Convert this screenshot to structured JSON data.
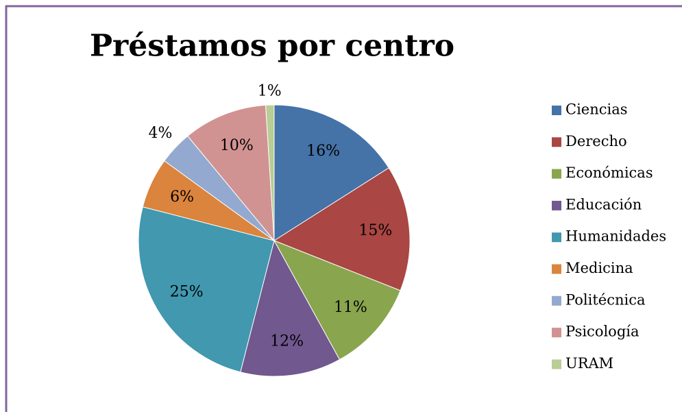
{
  "chart_data": {
    "type": "pie",
    "title": "Préstamos por centro",
    "categories": [
      "Ciencias",
      "Derecho",
      "Económicas",
      "Educación",
      "Humanidades",
      "Medicina",
      "Politécnica",
      "Psicología",
      "URAM"
    ],
    "values": [
      16,
      15,
      11,
      12,
      25,
      6,
      4,
      10,
      1
    ],
    "value_labels": [
      "16%",
      "15%",
      "11%",
      "12%",
      "25%",
      "6%",
      "4%",
      "10%",
      "1%"
    ],
    "colors": [
      "#4572A7",
      "#AA4643",
      "#89A54E",
      "#71588F",
      "#4198AF",
      "#DB843D",
      "#93A9CF",
      "#D19392",
      "#B9CD96"
    ],
    "legend": "right"
  }
}
